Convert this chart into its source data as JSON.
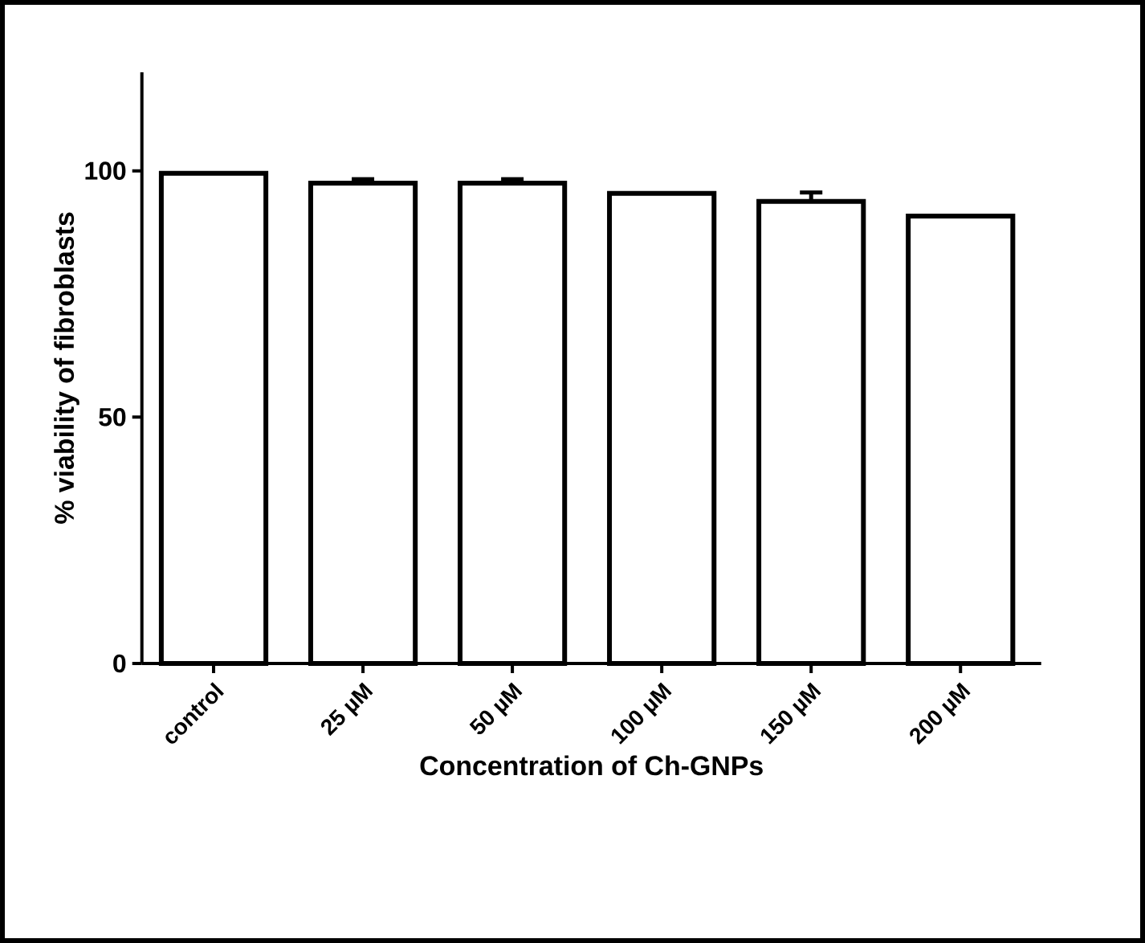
{
  "chart_data": {
    "type": "bar",
    "xlabel": "Concentration of Ch-GNPs",
    "ylabel": "% viability of fibroblasts",
    "categories": [
      "control",
      "25 µM",
      "50 µM",
      "100 µM",
      "150 µM",
      "200 µM"
    ],
    "values": [
      99.5,
      97.5,
      97.5,
      95.4,
      93.8,
      90.8
    ],
    "errors": [
      null,
      0.8,
      0.8,
      null,
      1.8,
      null
    ],
    "color": "#ffffff",
    "ylim": [
      0,
      120
    ],
    "yticks": [
      0,
      50,
      100
    ],
    "grid": false
  }
}
